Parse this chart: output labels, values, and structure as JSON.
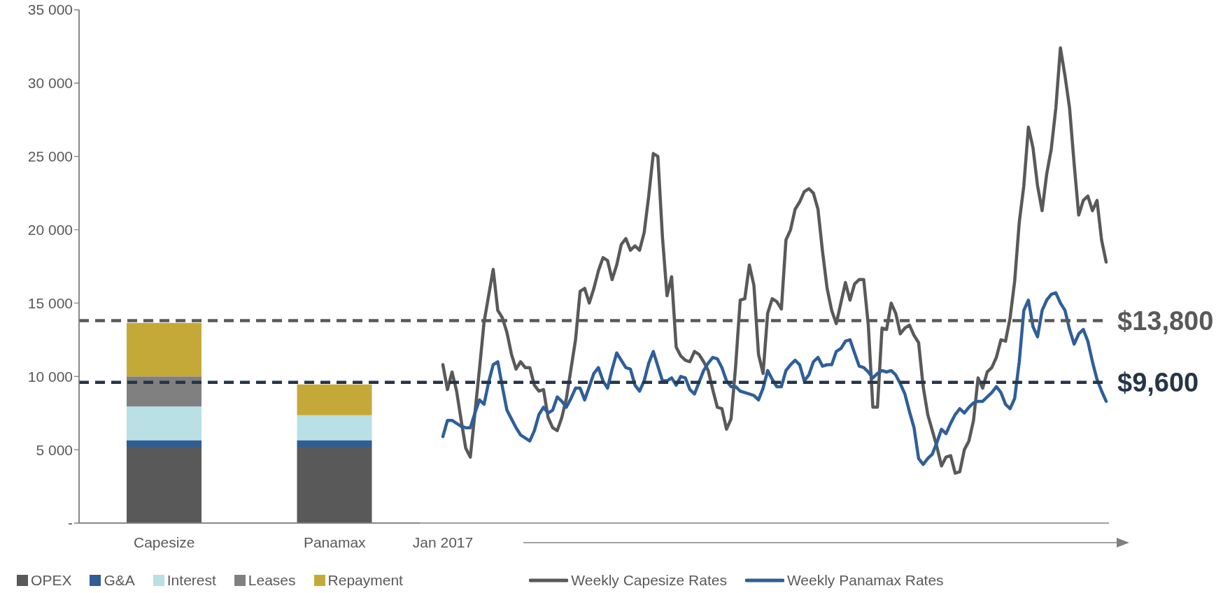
{
  "chart_data": [
    {
      "type": "bar",
      "stacked": true,
      "categories": [
        "Capesize",
        "Panamax"
      ],
      "series": [
        {
          "name": "OPEX",
          "color": "#595959",
          "values": [
            5200,
            5200
          ]
        },
        {
          "name": "G&A",
          "color": "#2f5d95",
          "values": [
            450,
            450
          ]
        },
        {
          "name": "Interest",
          "color": "#b9e0e4",
          "values": [
            2300,
            1700
          ]
        },
        {
          "name": "Leases",
          "color": "#808080",
          "values": [
            2050,
            0
          ]
        },
        {
          "name": "Repayment",
          "color": "#c5a938",
          "values": [
            3650,
            2100
          ]
        }
      ],
      "ylim": [
        0,
        35000
      ],
      "yticks": [
        {
          "value": 0,
          "label": null
        },
        {
          "value": 5000,
          "label": null
        },
        {
          "value": 10000,
          "label": null
        },
        {
          "value": 15000,
          "label": null
        },
        {
          "value": 20000,
          "label": null
        },
        {
          "value": 25000,
          "label": null
        },
        {
          "value": 30000,
          "label": null
        },
        {
          "value": 35000,
          "label": null
        }
      ],
      "tick_labels": "x",
      "legend": "bottom"
    },
    {
      "type": "line",
      "categories": [
        "Jan 2017",
        null,
        null,
        null,
        null,
        null,
        null,
        null,
        null,
        null,
        null,
        null,
        null,
        null,
        null,
        null,
        null,
        null,
        null,
        null,
        null,
        null,
        null,
        null,
        null,
        null,
        null,
        null,
        null,
        null,
        null,
        null,
        null,
        null,
        null,
        null,
        null,
        null,
        null,
        null,
        null,
        null,
        null,
        null,
        null,
        null,
        null,
        null,
        null,
        null,
        null,
        null,
        null,
        null,
        null,
        null,
        null,
        null,
        null,
        null,
        null,
        null,
        null,
        null,
        null,
        null,
        null,
        null,
        null,
        null,
        null,
        null,
        null,
        null,
        null,
        null,
        null,
        null,
        null,
        null,
        null,
        null,
        null,
        null,
        null,
        null,
        null,
        null,
        null,
        null,
        null,
        null,
        null,
        null,
        null,
        null,
        null,
        null,
        null,
        null,
        null,
        null,
        null,
        null,
        null,
        null,
        null,
        null,
        null,
        null,
        null,
        null,
        null,
        null,
        null,
        null,
        null,
        null,
        null,
        null,
        null,
        null,
        null,
        null,
        null,
        null,
        null,
        null,
        null,
        null,
        null,
        null,
        null,
        null,
        null,
        null,
        null,
        null,
        null,
        null,
        null,
        null,
        null,
        null,
        null,
        null
      ],
      "series": [
        {
          "name": "Weekly Capesize Rates",
          "color": "#595959",
          "values": [
            10800,
            9100,
            10300,
            9000,
            7000,
            5100,
            4500,
            7500,
            10500,
            13700,
            15500,
            17300,
            14500,
            14000,
            13000,
            11500,
            10500,
            11000,
            10600,
            10600,
            9400,
            9000,
            9100,
            7200,
            6500,
            6300,
            7200,
            8500,
            10500,
            12500,
            15800,
            16000,
            15000,
            16000,
            17200,
            18100,
            17900,
            16600,
            17600,
            19000,
            19400,
            18600,
            18900,
            18600,
            19800,
            22300,
            25200,
            25000,
            19500,
            15500,
            16800,
            12000,
            11400,
            11100,
            11000,
            11700,
            11500,
            11000,
            10400,
            9100,
            7900,
            7800,
            6400,
            7100,
            10700,
            15200,
            15300,
            17600,
            16200,
            11500,
            10200,
            14300,
            15300,
            15100,
            14600,
            19300,
            20000,
            21400,
            21900,
            22600,
            22800,
            22500,
            21400,
            18500,
            16000,
            14500,
            13600,
            15000,
            16400,
            15200,
            16300,
            16600,
            16600,
            13500,
            7900,
            7900,
            13300,
            13200,
            15000,
            14300,
            12900,
            13300,
            13500,
            12800,
            12300,
            9300,
            7400,
            6300,
            5200,
            3900,
            4500,
            4600,
            3400,
            3500,
            5000,
            5600,
            7000,
            9900,
            9200,
            10300,
            10600,
            11300,
            12500,
            12400,
            14000,
            16500,
            20500,
            23000,
            27000,
            25600,
            23000,
            21300,
            23800,
            25500,
            28300,
            32400,
            30500,
            28300,
            24500,
            21000,
            22000,
            22300,
            21300,
            22000,
            19300,
            17800
          ]
        },
        {
          "name": "Weekly Panamax Rates",
          "color": "#2f5f98",
          "values": [
            5900,
            7000,
            7000,
            6800,
            6600,
            6500,
            6500,
            7500,
            8400,
            8100,
            9600,
            10800,
            11000,
            9300,
            7700,
            7100,
            6500,
            6000,
            5800,
            5600,
            6300,
            7400,
            7900,
            7500,
            7700,
            8600,
            8300,
            7900,
            8500,
            9200,
            9200,
            8400,
            9300,
            10200,
            10600,
            9700,
            9200,
            10500,
            11600,
            11100,
            10600,
            10500,
            9400,
            9000,
            9700,
            10900,
            11700,
            10700,
            9700,
            9700,
            9900,
            9400,
            10000,
            9900,
            9100,
            8800,
            9600,
            10400,
            10900,
            11300,
            11200,
            10600,
            9700,
            9300,
            9300,
            9000,
            8900,
            8800,
            8700,
            8400,
            9200,
            10400,
            9800,
            9300,
            9300,
            10400,
            10800,
            11100,
            10800,
            9700,
            10100,
            11000,
            11300,
            10700,
            10800,
            10800,
            11700,
            11900,
            12400,
            12500,
            11600,
            10700,
            10600,
            10300,
            9900,
            10200,
            10400,
            10300,
            10400,
            10100,
            9500,
            8800,
            7600,
            6500,
            4400,
            4000,
            4400,
            4700,
            5500,
            6400,
            6100,
            6800,
            7400,
            7800,
            7500,
            7900,
            8200,
            8300,
            8300,
            8600,
            8900,
            9300,
            8900,
            8100,
            7800,
            8500,
            11000,
            14500,
            15200,
            13400,
            12700,
            14500,
            15200,
            15600,
            15700,
            15000,
            14500,
            13200,
            12200,
            12900,
            13200,
            12400,
            11000,
            9800,
            9000,
            8300
          ]
        }
      ],
      "ylim": [
        0,
        35000
      ],
      "yticks": [
        {
          "value": 0,
          "label": "-"
        },
        {
          "value": 5000,
          "label": "5 000"
        },
        {
          "value": 10000,
          "label": "10 000"
        },
        {
          "value": 15000,
          "label": "15 000"
        },
        {
          "value": 20000,
          "label": "20 000"
        },
        {
          "value": 25000,
          "label": "25 000"
        },
        {
          "value": 30000,
          "label": "30 000"
        },
        {
          "value": 35000,
          "label": "35 000"
        }
      ],
      "ref_lines": [
        {
          "axis": "y",
          "value": 13800,
          "color": "#595959",
          "line_style": "dashed",
          "label": "$13,800"
        },
        {
          "axis": "y",
          "value": 9600,
          "color": "#263548",
          "line_style": "dashed",
          "label": "$9,600"
        }
      ],
      "legend": "bottom"
    }
  ]
}
